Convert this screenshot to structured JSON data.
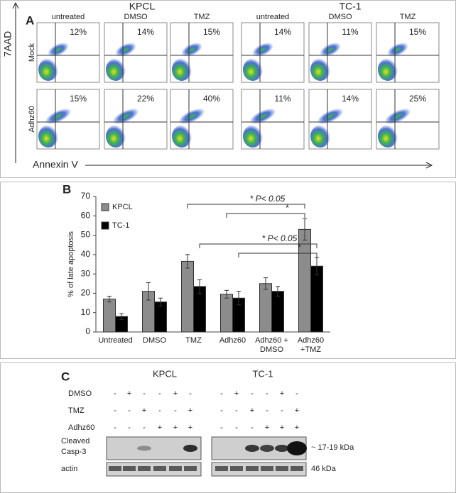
{
  "panel_a": {
    "label": "A",
    "groups": [
      "KPCL",
      "TC-1"
    ],
    "conditions": [
      "untreated",
      "DMSO",
      "TMZ",
      "untreated",
      "DMSO",
      "TMZ"
    ],
    "rows": [
      "Mock",
      "Adhz60"
    ],
    "percents": [
      [
        "12%",
        "14%",
        "15%",
        "14%",
        "11%",
        "15%"
      ],
      [
        "15%",
        "22%",
        "40%",
        "11%",
        "14%",
        "25%"
      ]
    ],
    "y_axis": "7AAD",
    "x_axis": "Annexin V"
  },
  "chart_data": {
    "type": "bar",
    "label": "B",
    "ylabel": "% of late apoptosis",
    "categories": [
      "Untreated",
      "DMSO",
      "TMZ",
      "Adhz60",
      "Adhz60 + DMSO",
      "Adhz60 +TMZ"
    ],
    "series": [
      {
        "name": "KPCL",
        "color": "#8c8c8c",
        "values": [
          17,
          21,
          36.5,
          19.5,
          25,
          53
        ],
        "errors": [
          1.5,
          4.5,
          3.5,
          2,
          3,
          5.5
        ]
      },
      {
        "name": "TC-1",
        "color": "#000000",
        "values": [
          8,
          15.5,
          23.5,
          17.5,
          21,
          34
        ],
        "errors": [
          1.5,
          2,
          3.5,
          3.5,
          2.5,
          4.5
        ]
      }
    ],
    "ylim": [
      0,
      70
    ],
    "yticks": [
      0,
      10,
      20,
      30,
      40,
      50,
      60,
      70
    ],
    "annotations": [
      "* P< 0.05",
      "*",
      "* P< 0.05",
      "*"
    ]
  },
  "panel_c": {
    "label": "C",
    "groups": [
      "KPCL",
      "TC-1"
    ],
    "treatments": [
      {
        "name": "DMSO",
        "signs": [
          "-",
          "+",
          "-",
          "-",
          "+",
          "-"
        ]
      },
      {
        "name": "TMZ",
        "signs": [
          "-",
          "-",
          "+",
          "-",
          "-",
          "+"
        ]
      },
      {
        "name": "Adhz60",
        "signs": [
          "-",
          "-",
          "-",
          "+",
          "+",
          "+"
        ]
      }
    ],
    "casp_label": [
      "Cleaved",
      "Casp-3"
    ],
    "actin_label": "actin",
    "casp_size": "~ 17-19 kDa",
    "actin_size": "46 kDa"
  }
}
